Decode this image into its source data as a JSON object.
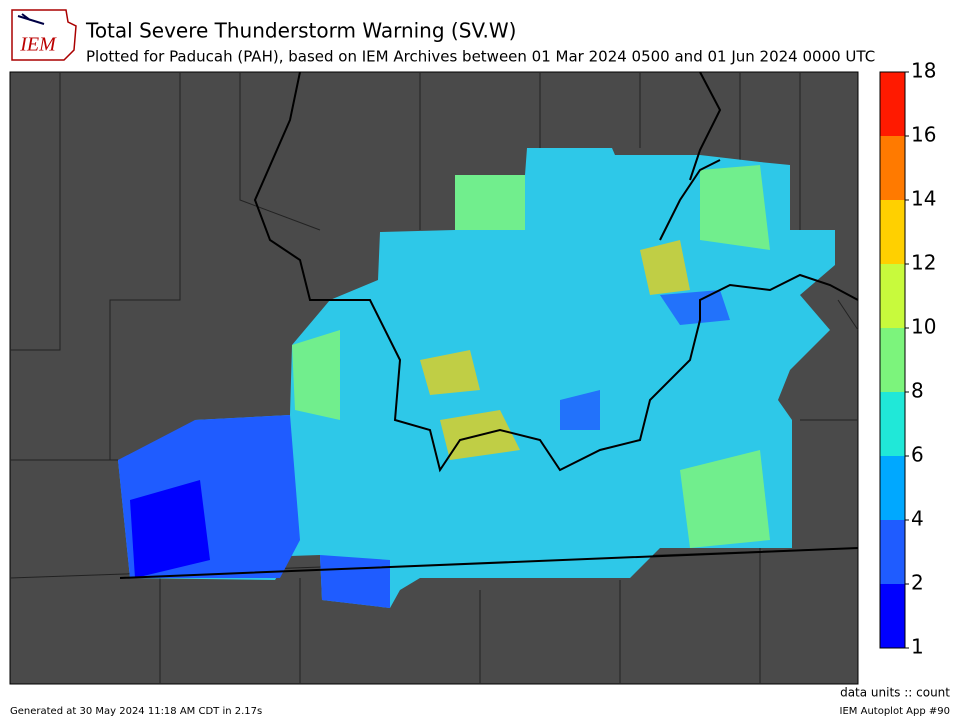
{
  "header": {
    "logo": "IEM",
    "title": "Total Severe Thunderstorm Warning (SV.W)",
    "subtitle": "Plotted for Paducah (PAH), based on IEM Archives  between 01 Mar 2024 0500 and 01 Jun 2024 0000 UTC"
  },
  "colorbar": {
    "bounds": [
      1,
      2,
      4,
      6,
      8,
      10,
      12,
      14,
      16,
      18
    ],
    "colors": [
      "#0000ff",
      "#1f5cff",
      "#00a8ff",
      "#20e8d8",
      "#7cf47c",
      "#c8fa3c",
      "#ffd000",
      "#ff7a00",
      "#ff1a00"
    ],
    "units": "data units :: count"
  },
  "footer": {
    "generated": "Generated at 30 May 2024 11:18 AM CDT in 2.17s",
    "app": "IEM Autoplot App #90"
  }
}
